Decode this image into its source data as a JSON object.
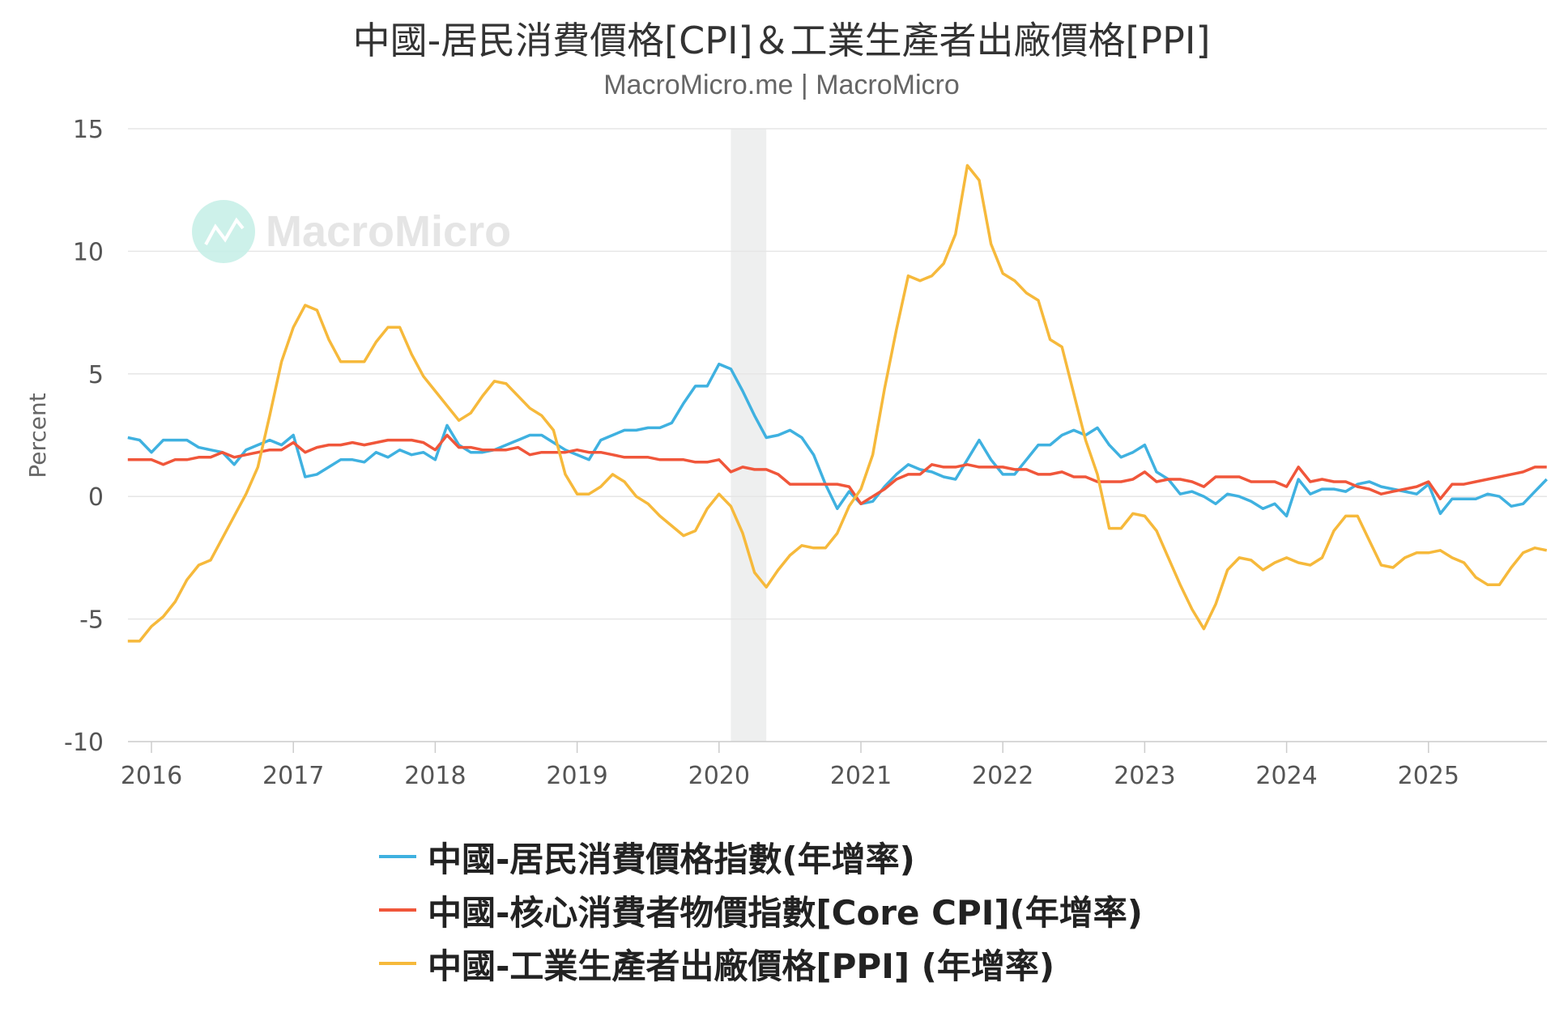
{
  "title": "中國-居民消費價格[CPI]＆工業生產者出廠價格[PPI]",
  "subtitle": "MacroMicro.me | MacroMicro",
  "watermark": "MacroMicro",
  "colors": {
    "cpi": "#3fb1e0",
    "core": "#f0563a",
    "ppi": "#f6b93b",
    "grid": "#e6e6e6",
    "band": "#eeefef"
  },
  "chart_data": {
    "type": "line",
    "title": "中國-居民消費價格[CPI]＆工業生產者出廠價格[PPI]",
    "xlabel": "",
    "ylabel": "Percent",
    "ylim": [
      -10,
      15
    ],
    "yticks": [
      15,
      10,
      5,
      0,
      -5,
      -10
    ],
    "xticks": [
      "2016",
      "2017",
      "2018",
      "2019",
      "2020",
      "2021",
      "2022",
      "2023",
      "2024",
      "2025"
    ],
    "x_start": "2015-11",
    "x_frequency": "monthly",
    "grid": true,
    "legend_position": "bottom",
    "shaded_periods": [
      {
        "from": "2020-02",
        "to": "2020-04"
      }
    ],
    "series": [
      {
        "name": "中國-居民消費價格指數(年增率)",
        "key": "cpi",
        "values": [
          2.4,
          2.3,
          1.8,
          2.3,
          2.3,
          2.3,
          2.0,
          1.9,
          1.8,
          1.3,
          1.9,
          2.1,
          2.3,
          2.1,
          2.5,
          0.8,
          0.9,
          1.2,
          1.5,
          1.5,
          1.4,
          1.8,
          1.6,
          1.9,
          1.7,
          1.8,
          1.5,
          2.9,
          2.1,
          1.8,
          1.8,
          1.9,
          2.1,
          2.3,
          2.5,
          2.5,
          2.2,
          1.9,
          1.7,
          1.5,
          2.3,
          2.5,
          2.7,
          2.7,
          2.8,
          2.8,
          3.0,
          3.8,
          4.5,
          4.5,
          5.4,
          5.2,
          4.3,
          3.3,
          2.4,
          2.5,
          2.7,
          2.4,
          1.7,
          0.5,
          -0.5,
          0.2,
          -0.3,
          -0.2,
          0.4,
          0.9,
          1.3,
          1.1,
          1.0,
          0.8,
          0.7,
          1.5,
          2.3,
          1.5,
          0.9,
          0.9,
          1.5,
          2.1,
          2.1,
          2.5,
          2.7,
          2.5,
          2.8,
          2.1,
          1.6,
          1.8,
          2.1,
          1.0,
          0.7,
          0.1,
          0.2,
          0.0,
          -0.3,
          0.1,
          0.0,
          -0.2,
          -0.5,
          -0.3,
          -0.8,
          0.7,
          0.1,
          0.3,
          0.3,
          0.2,
          0.5,
          0.6,
          0.4,
          0.3,
          0.2,
          0.1,
          0.5,
          -0.7,
          -0.1,
          -0.1,
          -0.1,
          0.1,
          0.0,
          -0.4,
          -0.3,
          0.2,
          0.7
        ]
      },
      {
        "name": "中國-核心消費者物價指數[Core CPI](年增率)",
        "key": "core",
        "values": [
          1.5,
          1.5,
          1.5,
          1.3,
          1.5,
          1.5,
          1.6,
          1.6,
          1.8,
          1.6,
          1.7,
          1.8,
          1.9,
          1.9,
          2.2,
          1.8,
          2.0,
          2.1,
          2.1,
          2.2,
          2.1,
          2.2,
          2.3,
          2.3,
          2.3,
          2.2,
          1.9,
          2.5,
          2.0,
          2.0,
          1.9,
          1.9,
          1.9,
          2.0,
          1.7,
          1.8,
          1.8,
          1.8,
          1.9,
          1.8,
          1.8,
          1.7,
          1.6,
          1.6,
          1.6,
          1.5,
          1.5,
          1.5,
          1.4,
          1.4,
          1.5,
          1.0,
          1.2,
          1.1,
          1.1,
          0.9,
          0.5,
          0.5,
          0.5,
          0.5,
          0.5,
          0.4,
          -0.3,
          0.0,
          0.3,
          0.7,
          0.9,
          0.9,
          1.3,
          1.2,
          1.2,
          1.3,
          1.2,
          1.2,
          1.2,
          1.1,
          1.1,
          0.9,
          0.9,
          1.0,
          0.8,
          0.8,
          0.6,
          0.6,
          0.6,
          0.7,
          1.0,
          0.6,
          0.7,
          0.7,
          0.6,
          0.4,
          0.8,
          0.8,
          0.8,
          0.6,
          0.6,
          0.6,
          0.4,
          1.2,
          0.6,
          0.7,
          0.6,
          0.6,
          0.4,
          0.3,
          0.1,
          0.2,
          0.3,
          0.4,
          0.6,
          -0.1,
          0.5,
          0.5,
          0.6,
          0.7,
          0.8,
          0.9,
          1.0,
          1.2,
          1.2
        ]
      },
      {
        "name": "中國-工業生產者出廠價格[PPI] (年增率)",
        "key": "ppi",
        "values": [
          -5.9,
          -5.9,
          -5.3,
          -4.9,
          -4.3,
          -3.4,
          -2.8,
          -2.6,
          -1.7,
          -0.8,
          0.1,
          1.2,
          3.3,
          5.5,
          6.9,
          7.8,
          7.6,
          6.4,
          5.5,
          5.5,
          5.5,
          6.3,
          6.9,
          6.9,
          5.8,
          4.9,
          4.3,
          3.7,
          3.1,
          3.4,
          4.1,
          4.7,
          4.6,
          4.1,
          3.6,
          3.3,
          2.7,
          0.9,
          0.1,
          0.1,
          0.4,
          0.9,
          0.6,
          0.0,
          -0.3,
          -0.8,
          -1.2,
          -1.6,
          -1.4,
          -0.5,
          0.1,
          -0.4,
          -1.5,
          -3.1,
          -3.7,
          -3.0,
          -2.4,
          -2.0,
          -2.1,
          -2.1,
          -1.5,
          -0.4,
          0.3,
          1.7,
          4.4,
          6.8,
          9.0,
          8.8,
          9.0,
          9.5,
          10.7,
          13.5,
          12.9,
          10.3,
          9.1,
          8.8,
          8.3,
          8.0,
          6.4,
          6.1,
          4.2,
          2.3,
          0.9,
          -1.3,
          -1.3,
          -0.7,
          -0.8,
          -1.4,
          -2.5,
          -3.6,
          -4.6,
          -5.4,
          -4.4,
          -3.0,
          -2.5,
          -2.6,
          -3.0,
          -2.7,
          -2.5,
          -2.7,
          -2.8,
          -2.5,
          -1.4,
          -0.8,
          -0.8,
          -1.8,
          -2.8,
          -2.9,
          -2.5,
          -2.3,
          -2.3,
          -2.2,
          -2.5,
          -2.7,
          -3.3,
          -3.6,
          -3.6,
          -2.9,
          -2.3,
          -2.1,
          -2.2
        ]
      }
    ]
  }
}
